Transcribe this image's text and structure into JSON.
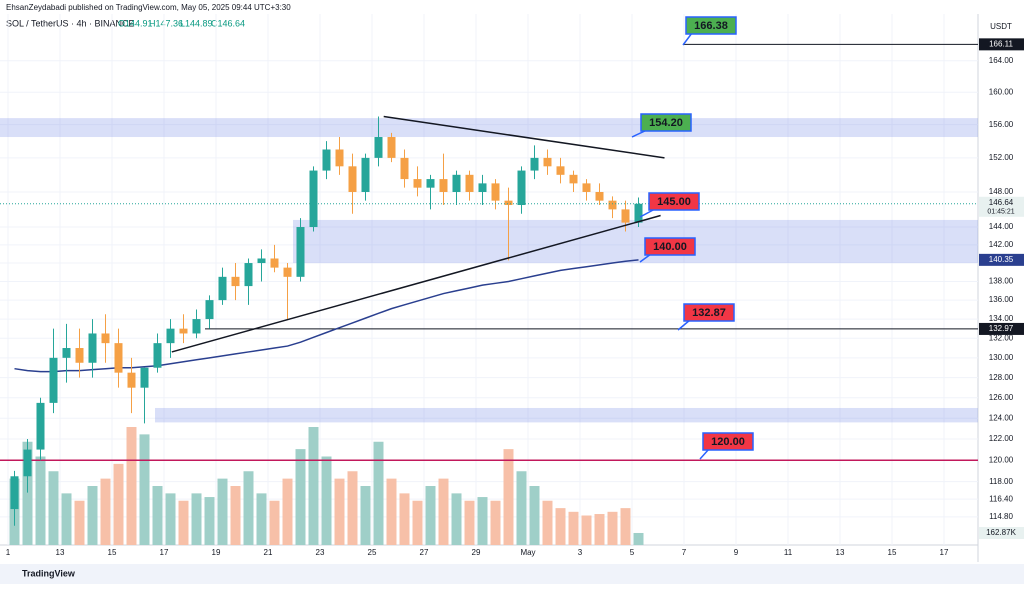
{
  "header": {
    "publisher": "EhsanZeydabadi published on TradingView.com, May 05, 2025 09:44 UTC+3:30",
    "symbol": "SOL / TetherUS · 4h · BINANCE",
    "ohlc": [
      "O144.91",
      "H147.36",
      "L144.89",
      "C146.64"
    ],
    "currency": "USDT"
  },
  "footer": {
    "logo": "TradingView"
  },
  "chart_data": {
    "type": "candlestick",
    "log_scale": true,
    "ylim": [
      112.3,
      170.1
    ],
    "yticks": [
      {
        "value": 114.8,
        "label": "114.80"
      },
      {
        "value": 116.4,
        "label": "116.40"
      },
      {
        "value": 118,
        "label": "118.00"
      },
      {
        "value": 120,
        "label": "120.00"
      },
      {
        "value": 122,
        "label": "122.00"
      },
      {
        "value": 124,
        "label": "124.00"
      },
      {
        "value": 126,
        "label": "126.00"
      },
      {
        "value": 128,
        "label": "128.00"
      },
      {
        "value": 130,
        "label": "130.00"
      },
      {
        "value": 132,
        "label": "132.00"
      },
      {
        "value": 134,
        "label": "134.00"
      },
      {
        "value": 136,
        "label": "136.00"
      },
      {
        "value": 138,
        "label": "138.00"
      },
      {
        "value": 140,
        "label": "140.00"
      },
      {
        "value": 142,
        "label": "142.00"
      },
      {
        "value": 144,
        "label": "144.00"
      },
      {
        "value": 148,
        "label": "148.00"
      },
      {
        "value": 152,
        "label": "152.00"
      },
      {
        "value": 156,
        "label": "156.00"
      },
      {
        "value": 160,
        "label": "160.00"
      },
      {
        "value": 164,
        "label": "164.00"
      }
    ],
    "categories": [
      "1",
      null,
      null,
      null,
      "13",
      null,
      null,
      null,
      "15",
      null,
      null,
      null,
      "17",
      null,
      null,
      null,
      "19",
      null,
      null,
      null,
      "21",
      null,
      null,
      null,
      "23",
      null,
      null,
      null,
      "25",
      null,
      null,
      null,
      "27",
      null,
      null,
      null,
      "29",
      null,
      null,
      null,
      "May",
      null,
      null,
      null,
      "3",
      null,
      null,
      null,
      "5",
      null,
      null,
      null,
      "7",
      null,
      null,
      null,
      "9",
      null,
      null,
      null,
      "11",
      null,
      null,
      null,
      "13",
      null,
      null,
      null,
      "15",
      null,
      null,
      null,
      "17",
      null
    ],
    "open": [
      115.5,
      118.5,
      121,
      125.5,
      130,
      131,
      129.5,
      132.5,
      131.5,
      128.5,
      127,
      129,
      131.5,
      133,
      132.5,
      134,
      136,
      138.5,
      137.5,
      140,
      140.5,
      139.5,
      138.5,
      144,
      150.5,
      153,
      151,
      148,
      152,
      154.5,
      152,
      149.5,
      148.5,
      149.5,
      148,
      150,
      148,
      149,
      147,
      146.5,
      150.5,
      152,
      151,
      150,
      149,
      148,
      147,
      146,
      144.5,
      null,
      null,
      null,
      null,
      null,
      null,
      null,
      null,
      null,
      null,
      null,
      null,
      null,
      null,
      null,
      null,
      null,
      null,
      null,
      null,
      null,
      null,
      null,
      null,
      null
    ],
    "high": [
      119,
      122,
      126,
      133,
      133.5,
      133,
      134,
      134.5,
      133,
      130,
      129,
      132.5,
      134,
      134.5,
      135,
      136.5,
      139.5,
      140,
      140.5,
      141.5,
      142,
      140,
      145,
      151,
      154,
      154.5,
      152.5,
      152.5,
      157,
      155,
      153,
      151,
      150,
      152.5,
      150.5,
      150.5,
      150,
      149.5,
      148.5,
      151,
      153.5,
      153,
      152,
      150.5,
      149.5,
      149,
      147.5,
      147,
      147.36,
      null,
      null,
      null,
      null,
      null,
      null,
      null,
      null,
      null,
      null,
      null,
      null,
      null,
      null,
      null,
      null,
      null,
      null,
      null,
      null,
      null,
      null,
      null,
      null,
      null
    ],
    "low": [
      114,
      117,
      120,
      124.5,
      127.5,
      128,
      128,
      129.5,
      127,
      124.5,
      123.5,
      128.5,
      130,
      131.5,
      132,
      133,
      135.5,
      136,
      135.5,
      138,
      139,
      134,
      138,
      143.5,
      149.5,
      150,
      145.5,
      147,
      151,
      151.5,
      148.5,
      147.5,
      146,
      146.5,
      146.5,
      147,
      146.5,
      146,
      140.3,
      145.5,
      149.5,
      150,
      149,
      148,
      147,
      146.5,
      145,
      143.5,
      144,
      null,
      null,
      null,
      null,
      null,
      null,
      null,
      null,
      null,
      null,
      null,
      null,
      null,
      null,
      null,
      null,
      null,
      null,
      null,
      null,
      null,
      null,
      null,
      null,
      null
    ],
    "close": [
      118.5,
      121,
      125.5,
      130,
      131,
      129.5,
      132.5,
      131.5,
      128.5,
      127,
      129,
      131.5,
      133,
      132.5,
      134,
      136,
      138.5,
      137.5,
      140,
      140.5,
      139.5,
      138.5,
      144,
      150.5,
      153,
      151,
      148,
      152,
      154.5,
      152,
      149.5,
      148.5,
      149.5,
      148,
      150,
      148,
      149,
      147,
      146.5,
      150.5,
      152,
      151,
      150,
      149,
      148,
      147,
      146,
      144.5,
      146.64,
      null,
      null,
      null,
      null,
      null,
      null,
      null,
      null,
      null,
      null,
      null,
      null,
      null,
      null,
      null,
      null,
      null,
      null,
      null,
      null,
      null,
      null,
      null,
      null,
      null
    ],
    "volume": [
      900,
      1400,
      1200,
      1000,
      700,
      600,
      800,
      900,
      1100,
      1600,
      1500,
      800,
      700,
      600,
      700,
      650,
      900,
      800,
      1000,
      700,
      600,
      900,
      1300,
      1600,
      1200,
      900,
      1000,
      800,
      1400,
      900,
      700,
      600,
      800,
      900,
      700,
      600,
      650,
      600,
      1300,
      1000,
      800,
      600,
      500,
      450,
      400,
      420,
      450,
      500,
      162.87,
      null,
      null,
      null,
      null,
      null,
      null,
      null,
      null,
      null,
      null,
      null,
      null,
      null,
      null,
      null,
      null,
      null,
      null,
      null,
      null,
      null,
      null,
      null,
      null,
      null
    ],
    "volume_lim": [
      0,
      7200
    ],
    "volume_label": "162.87K",
    "ma": [
      128.9,
      128.7,
      128.6,
      128.6,
      128.7,
      128.7,
      128.8,
      128.9,
      129.0,
      129.0,
      129.1,
      129.2,
      129.4,
      129.6,
      129.8,
      130.0,
      130.2,
      130.4,
      130.6,
      130.8,
      131.0,
      131.2,
      131.6,
      132.1,
      132.6,
      133.1,
      133.6,
      134.1,
      134.6,
      135.1,
      135.5,
      135.9,
      136.3,
      136.7,
      137.0,
      137.3,
      137.6,
      137.8,
      138.0,
      138.3,
      138.6,
      138.9,
      139.2,
      139.4,
      139.6,
      139.8,
      140.0,
      140.2,
      140.35,
      null,
      null,
      null,
      null,
      null,
      null,
      null,
      null,
      null,
      null,
      null,
      null,
      null,
      null,
      null,
      null,
      null,
      null,
      null,
      null,
      null,
      null,
      null,
      null,
      null
    ],
    "ma_label": "140.35",
    "ma_color": "#2a3f8f",
    "up_color": "#26a69a",
    "down_color": "#f5a045",
    "up_volume_color": "#9fcfc8",
    "down_volume_color": "#f7c0a8",
    "last_price": {
      "value": 146.64,
      "label": "146.64",
      "countdown": "01:45:21"
    },
    "levels": [
      {
        "value": 166.11,
        "label": "166.11",
        "color": "#131722"
      },
      {
        "value": 132.97,
        "label": "132.97",
        "color": "#131722"
      },
      {
        "value": 120,
        "color": "#c2185b"
      }
    ],
    "zones": [
      {
        "low": 154.5,
        "high": 156.8
      },
      {
        "low": 140.0,
        "high": 144.8
      },
      {
        "low": 123.6,
        "high": 125.0
      }
    ],
    "trendlines": [
      {
        "from": [
          28.4,
          157
        ],
        "to": [
          50.0,
          152
        ]
      },
      {
        "from": [
          12.1,
          130.6
        ],
        "to": [
          49.7,
          145.3
        ]
      }
    ],
    "annotations": [
      {
        "text": "166.38",
        "color": "#4caf50"
      },
      {
        "text": "154.20",
        "color": "#4caf50"
      },
      {
        "text": "145.00",
        "color": "#f23645"
      },
      {
        "text": "140.00",
        "color": "#f23645"
      },
      {
        "text": "132.87",
        "color": "#f23645"
      },
      {
        "text": "120.00",
        "color": "#f23645"
      }
    ]
  }
}
